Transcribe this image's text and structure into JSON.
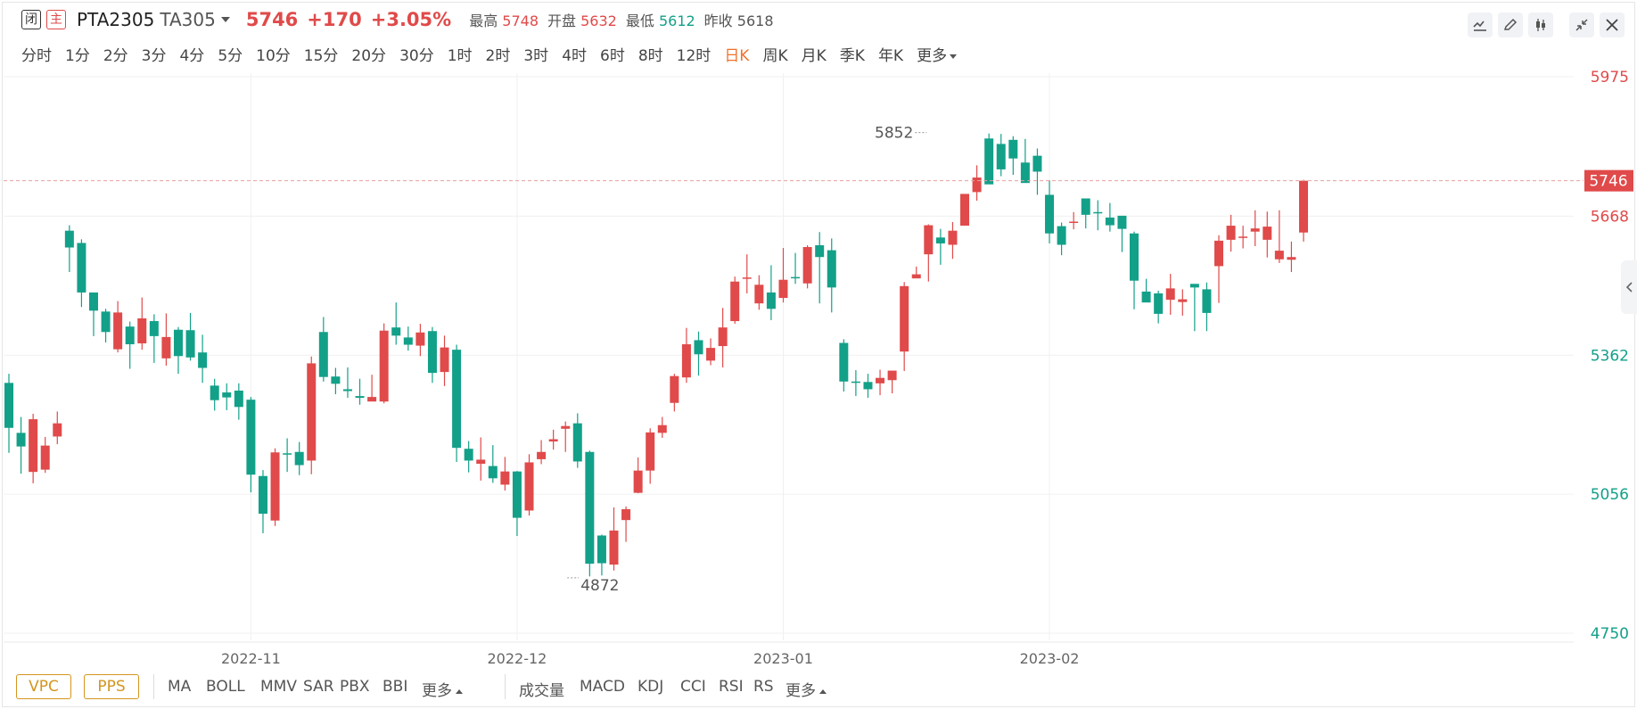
{
  "header": {
    "tag_closed": "闭",
    "tag_main": "主",
    "symbol": "PTA2305",
    "code": "TA305",
    "last_price": "5746",
    "change": "+170",
    "change_pct": "+3.05%",
    "high_label": "最高",
    "high_value": "5748",
    "open_label": "开盘",
    "open_value": "5632",
    "low_label": "最低",
    "low_value": "5612",
    "prev_label": "昨收",
    "prev_value": "5618"
  },
  "periods": [
    "分时",
    "1分",
    "2分",
    "3分",
    "4分",
    "5分",
    "10分",
    "15分",
    "20分",
    "30分",
    "1时",
    "2时",
    "3时",
    "4时",
    "6时",
    "8时",
    "12时",
    "日K",
    "周K",
    "月K",
    "季K",
    "年K",
    "更多"
  ],
  "active_period": "日K",
  "footer": {
    "vpc": "VPC",
    "pps": "PPS",
    "main_indicators": [
      "MA",
      "BOLL",
      "MMV",
      "SAR",
      "PBX",
      "BBI",
      "更多"
    ],
    "sub_indicators": [
      "成交量",
      "MACD",
      "KDJ",
      "CCI",
      "RSI",
      "RS",
      "更多"
    ]
  },
  "colors": {
    "up": "#e04a4a",
    "down": "#13a089",
    "active": "#f0712b",
    "badge": "#e04a4a"
  },
  "icons": [
    "line-draw-icon",
    "pencil-icon",
    "candlestick-icon",
    "shrink-icon",
    "close-icon",
    "collapse-arrow-icon"
  ],
  "chart_data": {
    "type": "candlestick",
    "ylim": [
      4750,
      5975
    ],
    "yticks": [
      {
        "value": 5975,
        "label": "5975",
        "color": "#e04a4a"
      },
      {
        "value": 5668,
        "label": "5668",
        "color": "#e04a4a"
      },
      {
        "value": 5362,
        "label": "5362",
        "color": "#13a089"
      },
      {
        "value": 5056,
        "label": "5056",
        "color": "#13a089"
      },
      {
        "value": 4750,
        "label": "4750",
        "color": "#13a089"
      }
    ],
    "x_labels": [
      {
        "index": 20,
        "label": "2022-11"
      },
      {
        "index": 42,
        "label": "2022-12"
      },
      {
        "index": 64,
        "label": "2023-01"
      },
      {
        "index": 86,
        "label": "2023-02"
      }
    ],
    "last_price": {
      "value": 5746,
      "label": "5746"
    },
    "annotations": [
      {
        "text": "5852",
        "index": 76,
        "value": 5852,
        "side": "left"
      },
      {
        "text": "4872",
        "index": 46,
        "value": 4872,
        "side": "right"
      }
    ],
    "candles": [
      [
        5301,
        5202,
        5321,
        5147
      ],
      [
        5191,
        5161,
        5226,
        5101
      ],
      [
        5105,
        5221,
        5233,
        5080
      ],
      [
        5110,
        5163,
        5182,
        5103
      ],
      [
        5183,
        5212,
        5238,
        5166
      ],
      [
        5636,
        5599,
        5648,
        5545
      ],
      [
        5609,
        5500,
        5617,
        5468
      ],
      [
        5500,
        5460,
        5498,
        5404
      ],
      [
        5458,
        5413,
        5464,
        5390
      ],
      [
        5375,
        5456,
        5481,
        5368
      ],
      [
        5425,
        5386,
        5436,
        5332
      ],
      [
        5388,
        5443,
        5489,
        5374
      ],
      [
        5437,
        5404,
        5452,
        5345
      ],
      [
        5355,
        5402,
        5454,
        5339
      ],
      [
        5418,
        5360,
        5424,
        5321
      ],
      [
        5417,
        5357,
        5455,
        5350
      ],
      [
        5368,
        5334,
        5407,
        5301
      ],
      [
        5295,
        5263,
        5310,
        5240
      ],
      [
        5280,
        5269,
        5300,
        5241
      ],
      [
        5284,
        5248,
        5300,
        5220
      ],
      [
        5264,
        5099,
        5270,
        5060
      ],
      [
        5096,
        5013,
        5109,
        4970
      ],
      [
        4998,
        5148,
        5157,
        4986
      ],
      [
        5146,
        5144,
        5179,
        5105
      ],
      [
        5149,
        5120,
        5171,
        5098
      ],
      [
        5130,
        5344,
        5359,
        5100
      ],
      [
        5413,
        5314,
        5446,
        5304
      ],
      [
        5315,
        5299,
        5334,
        5276
      ],
      [
        5287,
        5283,
        5335,
        5268
      ],
      [
        5272,
        5268,
        5310,
        5253
      ],
      [
        5260,
        5270,
        5319,
        5261
      ],
      [
        5260,
        5416,
        5432,
        5256
      ],
      [
        5423,
        5405,
        5478,
        5385
      ],
      [
        5401,
        5385,
        5425,
        5372
      ],
      [
        5383,
        5412,
        5431,
        5360
      ],
      [
        5415,
        5323,
        5424,
        5301
      ],
      [
        5325,
        5379,
        5405,
        5294
      ],
      [
        5374,
        5158,
        5385,
        5127
      ],
      [
        5156,
        5130,
        5173,
        5104
      ],
      [
        5123,
        5132,
        5181,
        5086
      ],
      [
        5118,
        5091,
        5164,
        5081
      ],
      [
        5077,
        5106,
        5138,
        5064
      ],
      [
        5106,
        5004,
        5107,
        4964
      ],
      [
        5020,
        5126,
        5144,
        5009
      ],
      [
        5133,
        5149,
        5175,
        5122
      ],
      [
        5172,
        5177,
        5198,
        5154
      ],
      [
        5200,
        5206,
        5216,
        5149
      ],
      [
        5212,
        5128,
        5234,
        5114
      ],
      [
        5149,
        4903,
        5152,
        4875
      ],
      [
        4965,
        4904,
        4967,
        4877
      ],
      [
        4901,
        4976,
        5027,
        4888
      ],
      [
        4999,
        5023,
        5029,
        4951
      ],
      [
        5059,
        5108,
        5137,
        5058
      ],
      [
        5108,
        5192,
        5201,
        5079
      ],
      [
        5191,
        5208,
        5226,
        5180
      ],
      [
        5257,
        5316,
        5321,
        5238
      ],
      [
        5313,
        5386,
        5422,
        5301
      ],
      [
        5395,
        5364,
        5414,
        5317
      ],
      [
        5350,
        5378,
        5399,
        5340
      ],
      [
        5382,
        5423,
        5466,
        5335
      ],
      [
        5437,
        5524,
        5535,
        5431
      ],
      [
        5533,
        5533,
        5584,
        5498
      ],
      [
        5476,
        5517,
        5538,
        5462
      ],
      [
        5500,
        5464,
        5560,
        5439
      ],
      [
        5488,
        5528,
        5598,
        5478
      ],
      [
        5534,
        5532,
        5587,
        5519
      ],
      [
        5520,
        5600,
        5604,
        5509
      ],
      [
        5604,
        5578,
        5633,
        5476
      ],
      [
        5593,
        5511,
        5619,
        5456
      ],
      [
        5389,
        5304,
        5397,
        5282
      ],
      [
        5304,
        5302,
        5329,
        5272
      ],
      [
        5303,
        5287,
        5321,
        5268
      ],
      [
        5300,
        5312,
        5330,
        5274
      ],
      [
        5307,
        5328,
        5325,
        5278
      ],
      [
        5370,
        5514,
        5523,
        5327
      ],
      [
        5531,
        5540,
        5557,
        5532
      ],
      [
        5584,
        5648,
        5650,
        5524
      ],
      [
        5621,
        5608,
        5640,
        5561
      ],
      [
        5605,
        5636,
        5655,
        5574
      ],
      [
        5647,
        5717,
        5716,
        5672
      ],
      [
        5721,
        5753,
        5780,
        5702
      ],
      [
        5839,
        5738,
        5850,
        5770
      ],
      [
        5827,
        5771,
        5849,
        5756
      ],
      [
        5836,
        5795,
        5844,
        5759
      ],
      [
        5786,
        5741,
        5838,
        5745
      ],
      [
        5801,
        5766,
        5817,
        5715
      ],
      [
        5715,
        5630,
        5747,
        5608
      ],
      [
        5646,
        5605,
        5654,
        5582
      ],
      [
        5656,
        5656,
        5677,
        5639
      ],
      [
        5707,
        5671,
        5704,
        5641
      ],
      [
        5677,
        5676,
        5703,
        5637
      ],
      [
        5665,
        5648,
        5697,
        5634
      ],
      [
        5669,
        5640,
        5644,
        5589
      ],
      [
        5630,
        5526,
        5634,
        5463
      ],
      [
        5502,
        5478,
        5530,
        5487
      ],
      [
        5498,
        5453,
        5504,
        5432
      ],
      [
        5484,
        5509,
        5541,
        5451
      ],
      [
        5479,
        5485,
        5507,
        5449
      ],
      [
        5519,
        5511,
        5512,
        5415
      ],
      [
        5507,
        5455,
        5522,
        5415
      ],
      [
        5558,
        5614,
        5626,
        5477
      ],
      [
        5616,
        5647,
        5671,
        5590
      ],
      [
        5622,
        5623,
        5647,
        5597
      ],
      [
        5634,
        5641,
        5681,
        5602
      ],
      [
        5616,
        5645,
        5678,
        5577
      ],
      [
        5573,
        5592,
        5681,
        5565
      ],
      [
        5572,
        5578,
        5612,
        5545
      ],
      [
        5632,
        5746,
        5748,
        5612
      ]
    ]
  }
}
